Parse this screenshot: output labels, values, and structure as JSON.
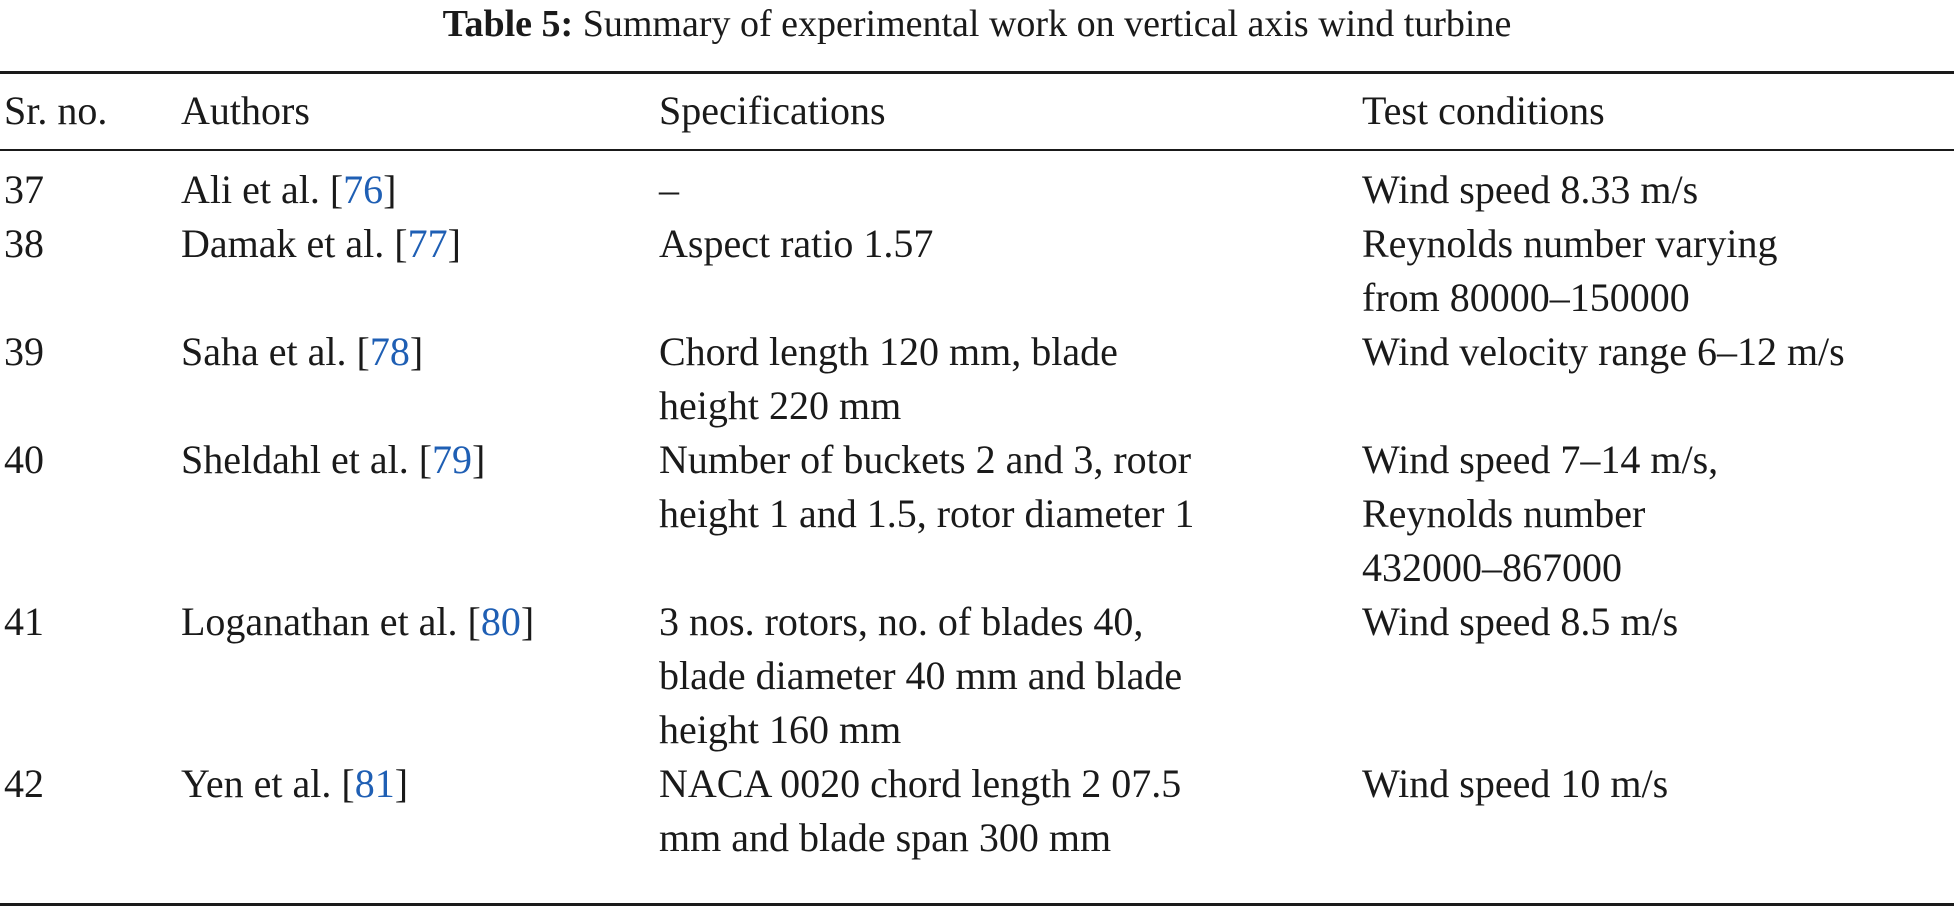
{
  "caption": {
    "label": "Table 5:",
    "text": "Summary of experimental work on vertical axis wind turbine"
  },
  "headers": {
    "sr": "Sr. no.",
    "authors": "Authors",
    "spec": "Specifications",
    "test": "Test conditions"
  },
  "colors": {
    "text": "#1a1a1a",
    "reference_link": "#1f5fb4"
  },
  "rows": [
    {
      "sr": "37",
      "author": "Ali et al. [",
      "ref": "76",
      "author_end": "]",
      "spec": [
        "–"
      ],
      "test": [
        "Wind speed 8.33 m/s"
      ]
    },
    {
      "sr": "38",
      "author": "Damak et al. [",
      "ref": "77",
      "author_end": "]",
      "spec": [
        "Aspect ratio 1.57"
      ],
      "test": [
        "Reynolds number varying",
        "from 80000–150000"
      ]
    },
    {
      "sr": "39",
      "author": "Saha et al. [",
      "ref": "78",
      "author_end": "]",
      "spec": [
        "Chord length 120 mm, blade",
        "height 220 mm"
      ],
      "test": [
        "Wind velocity range 6–12 m/s"
      ]
    },
    {
      "sr": "40",
      "author": "Sheldahl et al. [",
      "ref": "79",
      "author_end": "]",
      "spec": [
        "Number of buckets 2 and 3, rotor",
        "height 1 and 1.5, rotor diameter 1"
      ],
      "test": [
        "Wind speed 7–14 m/s,",
        "Reynolds number",
        "432000–867000"
      ]
    },
    {
      "sr": "41",
      "author": "Loganathan et al. [",
      "ref": "80",
      "author_end": "]",
      "spec": [
        "3 nos. rotors, no. of blades 40,",
        "blade diameter 40 mm and blade",
        "height 160 mm"
      ],
      "test": [
        "Wind speed 8.5 m/s"
      ]
    },
    {
      "sr": "42",
      "author": "Yen et al. [",
      "ref": "81",
      "author_end": "]",
      "spec": [
        "NACA 0020 chord length 2 07.5",
        "mm and blade span 300 mm"
      ],
      "test": [
        "Wind speed 10 m/s"
      ]
    }
  ]
}
